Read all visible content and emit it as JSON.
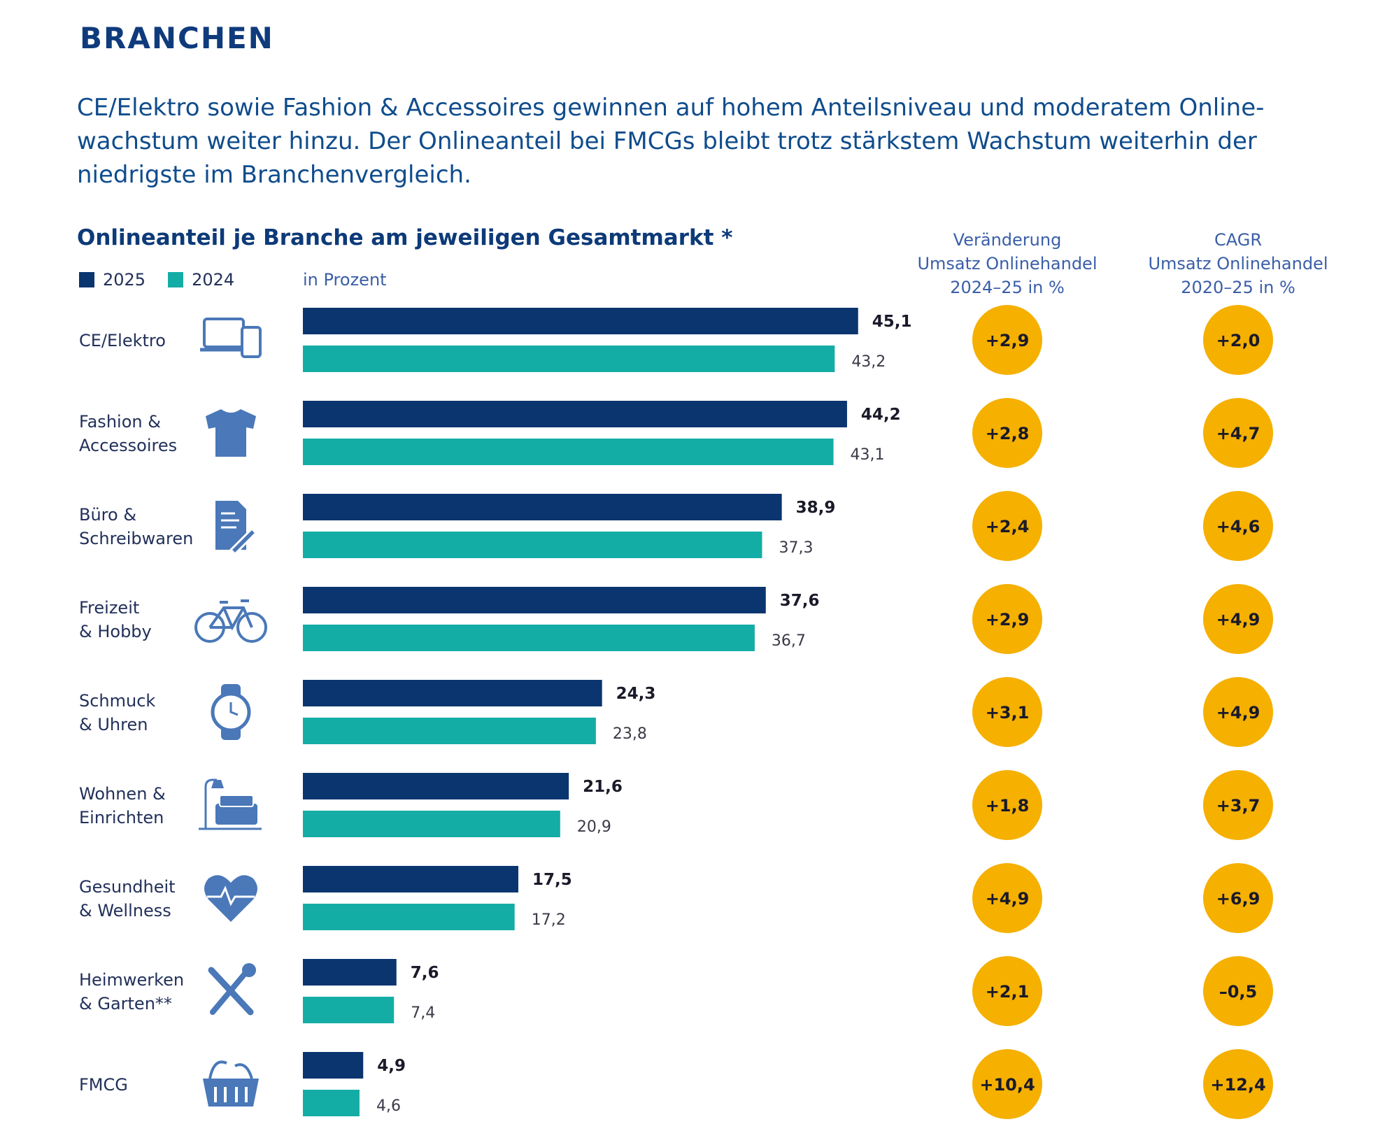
{
  "page": {
    "section_title": "BRANCHEN",
    "intro": "CE/Elektro sowie Fashion & Accessoires gewinnen auf hohem Anteilsniveau und moderatem Onlinewachstum weiter hinzu. Der Onlineanteil bei FMCGs bleibt trotz stärkstem Wachstum weiterhin der niedrigste im Branchenvergleich.",
    "intro_lines": [
      "CE/Elektro sowie Fashion & Accessoires gewinnen auf hohem Anteilsniveau und moderatem Online-",
      "wachstum weiter hinzu. Der Onlineanteil bei FMCGs bleibt trotz stärkstem Wachstum weiterhin der",
      "niedrigste im Branchenvergleich."
    ]
  },
  "colors": {
    "series_2025": "#0a356f",
    "series_2024": "#14ada6",
    "badge": "#f5b000",
    "text_dark": "#0d3a78"
  },
  "chart_data": {
    "type": "bar",
    "orientation": "horizontal",
    "title": "Onlineanteil je Branche am jeweiligen Gesamtmarkt *",
    "unit_label": "in Prozent",
    "legend": [
      "2025",
      "2024"
    ],
    "legend_position": "top-left",
    "grid": false,
    "xlim": [
      0,
      50
    ],
    "categories": [
      {
        "label_lines": [
          "CE/Elektro"
        ],
        "icon": "devices-icon"
      },
      {
        "label_lines": [
          "Fashion &",
          "Accessoires"
        ],
        "icon": "tshirt-icon"
      },
      {
        "label_lines": [
          "Büro &",
          "Schreibwaren"
        ],
        "icon": "document-pen-icon"
      },
      {
        "label_lines": [
          "Freizeit",
          "& Hobby"
        ],
        "icon": "bicycle-icon"
      },
      {
        "label_lines": [
          "Schmuck",
          "& Uhren"
        ],
        "icon": "watch-icon"
      },
      {
        "label_lines": [
          "Wohnen &",
          "Einrichten"
        ],
        "icon": "sofa-lamp-icon"
      },
      {
        "label_lines": [
          "Gesundheit",
          "& Wellness"
        ],
        "icon": "heart-pulse-icon"
      },
      {
        "label_lines": [
          "Heimwerken",
          "& Garten**"
        ],
        "icon": "tools-icon"
      },
      {
        "label_lines": [
          "FMCG"
        ],
        "icon": "basket-icon"
      }
    ],
    "series": [
      {
        "name": "2025",
        "values": [
          45.1,
          44.2,
          38.9,
          37.6,
          24.3,
          21.6,
          17.5,
          7.6,
          4.9
        ],
        "labels": [
          "45,1",
          "44,2",
          "38,9",
          "37,6",
          "24,3",
          "21,6",
          "17,5",
          "7,6",
          "4,9"
        ]
      },
      {
        "name": "2024",
        "values": [
          43.2,
          43.1,
          37.3,
          36.7,
          23.8,
          20.9,
          17.2,
          7.4,
          4.6
        ],
        "labels": [
          "43,2",
          "43,1",
          "37,3",
          "36,7",
          "23,8",
          "20,9",
          "17,2",
          "7,4",
          "4,6"
        ]
      }
    ],
    "columns": [
      {
        "header_lines": [
          "Veränderung",
          "Umsatz Onlinehandel",
          "2024–25 in %"
        ],
        "values": [
          2.9,
          2.8,
          2.4,
          2.9,
          3.1,
          1.8,
          4.9,
          2.1,
          10.4
        ],
        "labels": [
          "+2,9",
          "+2,8",
          "+2,4",
          "+2,9",
          "+3,1",
          "+1,8",
          "+4,9",
          "+2,1",
          "+10,4"
        ]
      },
      {
        "header_lines": [
          "CAGR",
          "Umsatz Onlinehandel",
          "2020–25 in %"
        ],
        "values": [
          2.0,
          4.7,
          4.6,
          4.9,
          4.9,
          3.7,
          6.9,
          -0.5,
          12.4
        ],
        "labels": [
          "+2,0",
          "+4,7",
          "+4,6",
          "+4,9",
          "+4,9",
          "+3,7",
          "+6,9",
          "–0,5",
          "+12,4"
        ]
      }
    ]
  }
}
